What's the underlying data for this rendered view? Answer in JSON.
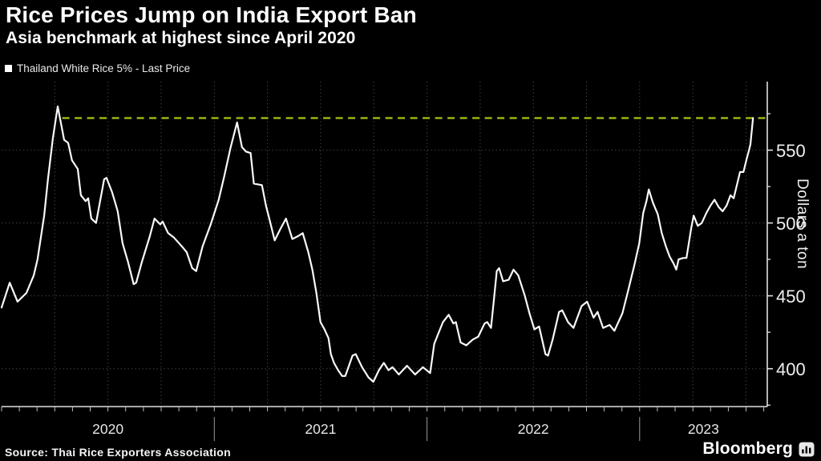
{
  "header": {
    "title": "Rice Prices Jump on India Export Ban",
    "subtitle": "Asia benchmark at highest since April 2020"
  },
  "legend": {
    "label": "Thailand White Rice 5% - Last Price",
    "marker": "white-square"
  },
  "source": {
    "text": "Source: Thai Rice Exporters Association"
  },
  "branding": {
    "name": "Bloomberg",
    "mark": "bar-chart-icon"
  },
  "colors": {
    "background": "#000000",
    "price_line": "#fafafa",
    "high_line": "#97b514",
    "grid": "#3f3f3f",
    "axis": "#e0e0e0",
    "text": "#f0f0f0"
  },
  "chart_data": {
    "type": "line",
    "title": "Rice Prices Jump on India Export Ban",
    "subtitle": "Asia benchmark at highest since April 2020",
    "ylabel": "Dollars a ton",
    "xlabel": "",
    "legend_position": "top-left",
    "grid": "dotted, horizontal at 50s, vertical quarterly",
    "ylim": [
      374,
      597
    ],
    "xlim": [
      2020.0,
      2023.6
    ],
    "y_ticks": [
      400,
      450,
      500,
      550
    ],
    "y_minor_ticks": [
      375,
      425,
      475,
      525,
      575
    ],
    "x_ticks": [
      2020,
      2021,
      2022,
      2023
    ],
    "x_tick_labels": [
      "2020",
      "2021",
      "2022",
      "2023"
    ],
    "reference_line": {
      "value": 572,
      "x_start": 2020.285,
      "style": "dashed",
      "color": "#97b514",
      "meaning": "last price level, highest since April 2020"
    },
    "series": [
      {
        "name": "Thailand White Rice 5% - Last Price",
        "color": "#fafafa",
        "points": [
          [
            2020.0,
            442
          ],
          [
            2020.038,
            459
          ],
          [
            2020.075,
            446
          ],
          [
            2020.117,
            452
          ],
          [
            2020.151,
            464
          ],
          [
            2020.169,
            475
          ],
          [
            2020.2,
            505
          ],
          [
            2020.218,
            530
          ],
          [
            2020.241,
            558
          ],
          [
            2020.264,
            580
          ],
          [
            2020.294,
            557
          ],
          [
            2020.313,
            555
          ],
          [
            2020.331,
            543
          ],
          [
            2020.358,
            537
          ],
          [
            2020.373,
            519
          ],
          [
            2020.395,
            515
          ],
          [
            2020.407,
            517
          ],
          [
            2020.422,
            503
          ],
          [
            2020.444,
            500
          ],
          [
            2020.482,
            530
          ],
          [
            2020.493,
            531
          ],
          [
            2020.52,
            521
          ],
          [
            2020.546,
            508
          ],
          [
            2020.569,
            486
          ],
          [
            2020.595,
            473
          ],
          [
            2020.621,
            458
          ],
          [
            2020.633,
            459
          ],
          [
            2020.659,
            473
          ],
          [
            2020.697,
            491
          ],
          [
            2020.719,
            503
          ],
          [
            2020.746,
            499
          ],
          [
            2020.757,
            501
          ],
          [
            2020.783,
            493
          ],
          [
            2020.81,
            490
          ],
          [
            2020.847,
            484
          ],
          [
            2020.87,
            480
          ],
          [
            2020.896,
            469
          ],
          [
            2020.915,
            467
          ],
          [
            2020.945,
            484
          ],
          [
            2020.983,
            499
          ],
          [
            2021.021,
            516
          ],
          [
            2021.047,
            532
          ],
          [
            2021.077,
            552
          ],
          [
            2021.107,
            569
          ],
          [
            2021.13,
            552
          ],
          [
            2021.149,
            549
          ],
          [
            2021.171,
            548
          ],
          [
            2021.186,
            527
          ],
          [
            2021.224,
            526
          ],
          [
            2021.243,
            512
          ],
          [
            2021.262,
            501
          ],
          [
            2021.284,
            488
          ],
          [
            2021.311,
            496
          ],
          [
            2021.337,
            503
          ],
          [
            2021.367,
            489
          ],
          [
            2021.394,
            491
          ],
          [
            2021.416,
            493
          ],
          [
            2021.442,
            480
          ],
          [
            2021.461,
            468
          ],
          [
            2021.48,
            452
          ],
          [
            2021.499,
            432
          ],
          [
            2021.518,
            427
          ],
          [
            2021.537,
            421
          ],
          [
            2021.548,
            410
          ],
          [
            2021.563,
            404
          ],
          [
            2021.582,
            399
          ],
          [
            2021.601,
            395
          ],
          [
            2021.616,
            395
          ],
          [
            2021.65,
            409
          ],
          [
            2021.665,
            410
          ],
          [
            2021.695,
            401
          ],
          [
            2021.725,
            394
          ],
          [
            2021.748,
            391
          ],
          [
            2021.774,
            399
          ],
          [
            2021.797,
            404
          ],
          [
            2021.819,
            399
          ],
          [
            2021.838,
            401
          ],
          [
            2021.868,
            396
          ],
          [
            2021.906,
            402
          ],
          [
            2021.944,
            396
          ],
          [
            2021.981,
            401
          ],
          [
            2022.015,
            397
          ],
          [
            2022.034,
            417
          ],
          [
            2022.053,
            424
          ],
          [
            2022.075,
            432
          ],
          [
            2022.102,
            437
          ],
          [
            2022.124,
            431
          ],
          [
            2022.136,
            432
          ],
          [
            2022.158,
            418
          ],
          [
            2022.185,
            416
          ],
          [
            2022.215,
            420
          ],
          [
            2022.241,
            422
          ],
          [
            2022.271,
            431
          ],
          [
            2022.283,
            432
          ],
          [
            2022.301,
            428
          ],
          [
            2022.313,
            445
          ],
          [
            2022.328,
            467
          ],
          [
            2022.339,
            469
          ],
          [
            2022.358,
            460
          ],
          [
            2022.384,
            461
          ],
          [
            2022.407,
            468
          ],
          [
            2022.429,
            464
          ],
          [
            2022.46,
            450
          ],
          [
            2022.482,
            438
          ],
          [
            2022.505,
            427
          ],
          [
            2022.527,
            429
          ],
          [
            2022.557,
            410
          ],
          [
            2022.569,
            409
          ],
          [
            2022.591,
            420
          ],
          [
            2022.621,
            439
          ],
          [
            2022.636,
            440
          ],
          [
            2022.663,
            432
          ],
          [
            2022.689,
            428
          ],
          [
            2022.727,
            443
          ],
          [
            2022.753,
            446
          ],
          [
            2022.783,
            435
          ],
          [
            2022.802,
            439
          ],
          [
            2022.828,
            428
          ],
          [
            2022.859,
            430
          ],
          [
            2022.881,
            426
          ],
          [
            2022.919,
            438
          ],
          [
            2022.945,
            453
          ],
          [
            2022.975,
            471
          ],
          [
            2022.998,
            486
          ],
          [
            2023.017,
            507
          ],
          [
            2023.032,
            515
          ],
          [
            2023.043,
            523
          ],
          [
            2023.062,
            514
          ],
          [
            2023.085,
            506
          ],
          [
            2023.104,
            493
          ],
          [
            2023.123,
            484
          ],
          [
            2023.141,
            477
          ],
          [
            2023.16,
            472
          ],
          [
            2023.172,
            468
          ],
          [
            2023.183,
            475
          ],
          [
            2023.205,
            476
          ],
          [
            2023.22,
            476
          ],
          [
            2023.243,
            497
          ],
          [
            2023.254,
            505
          ],
          [
            2023.273,
            498
          ],
          [
            2023.292,
            500
          ],
          [
            2023.314,
            507
          ],
          [
            2023.333,
            512
          ],
          [
            2023.352,
            516
          ],
          [
            2023.371,
            511
          ],
          [
            2023.39,
            508
          ],
          [
            2023.409,
            512
          ],
          [
            2023.427,
            519
          ],
          [
            2023.442,
            517
          ],
          [
            2023.457,
            526
          ],
          [
            2023.472,
            535
          ],
          [
            2023.488,
            535
          ],
          [
            2023.503,
            544
          ],
          [
            2023.514,
            550
          ],
          [
            2023.521,
            554
          ],
          [
            2023.533,
            572
          ]
        ]
      }
    ]
  }
}
